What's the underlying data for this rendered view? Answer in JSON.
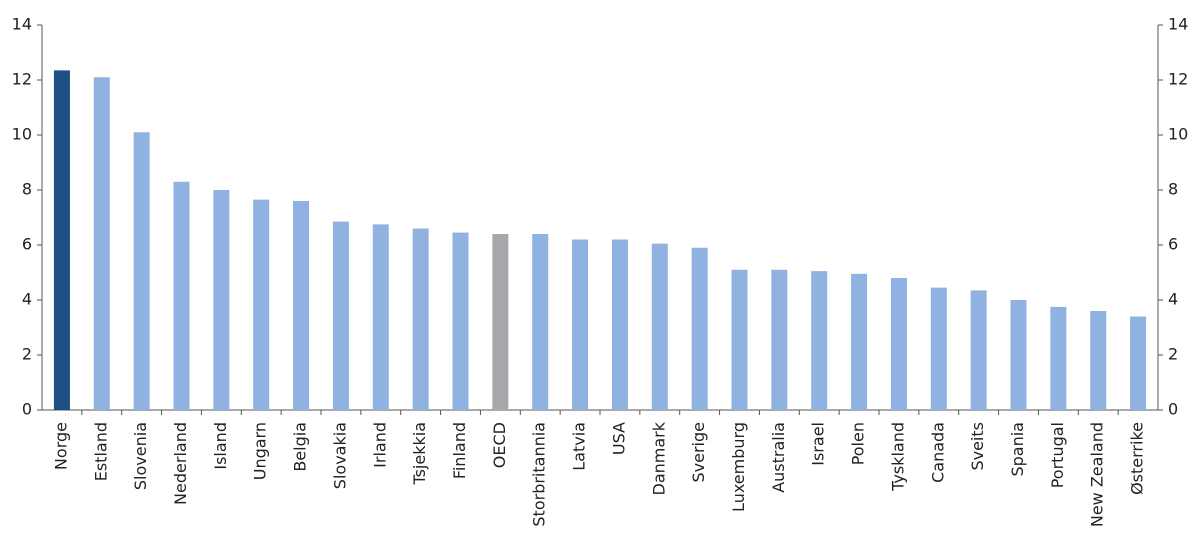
{
  "chart_data": {
    "type": "bar",
    "categories": [
      "Norge",
      "Estland",
      "Slovenia",
      "Nederland",
      "Island",
      "Ungarn",
      "Belgia",
      "Slovakia",
      "Irland",
      "Tsjekkia",
      "Finland",
      "OECD",
      "Storbritannia",
      "Latvia",
      "USA",
      "Danmark",
      "Sverige",
      "Luxemburg",
      "Australia",
      "Israel",
      "Polen",
      "Tyskland",
      "Canada",
      "Sveits",
      "Spania",
      "Portugal",
      "New Zealand",
      "Østerrike"
    ],
    "values": [
      12.35,
      12.1,
      10.1,
      8.3,
      8.0,
      7.65,
      7.6,
      6.85,
      6.75,
      6.6,
      6.45,
      6.4,
      6.4,
      6.2,
      6.2,
      6.05,
      5.9,
      5.1,
      5.1,
      5.05,
      4.95,
      4.8,
      4.45,
      4.35,
      4.0,
      3.75,
      3.6,
      3.4
    ],
    "colors": [
      "#1f4e82",
      "#8fb2e0",
      "#8fb2e0",
      "#8fb2e0",
      "#8fb2e0",
      "#8fb2e0",
      "#8fb2e0",
      "#8fb2e0",
      "#8fb2e0",
      "#8fb2e0",
      "#8fb2e0",
      "#a6a8ab",
      "#8fb2e0",
      "#8fb2e0",
      "#8fb2e0",
      "#8fb2e0",
      "#8fb2e0",
      "#8fb2e0",
      "#8fb2e0",
      "#8fb2e0",
      "#8fb2e0",
      "#8fb2e0",
      "#8fb2e0",
      "#8fb2e0",
      "#8fb2e0",
      "#8fb2e0",
      "#8fb2e0",
      "#8fb2e0"
    ],
    "ylim": [
      0,
      14
    ],
    "yticks": [
      0,
      2,
      4,
      6,
      8,
      10,
      12,
      14
    ],
    "y2lim": [
      0,
      14
    ],
    "y2ticks": [
      0,
      2,
      4,
      6,
      8,
      10,
      12,
      14
    ],
    "grid": false
  }
}
